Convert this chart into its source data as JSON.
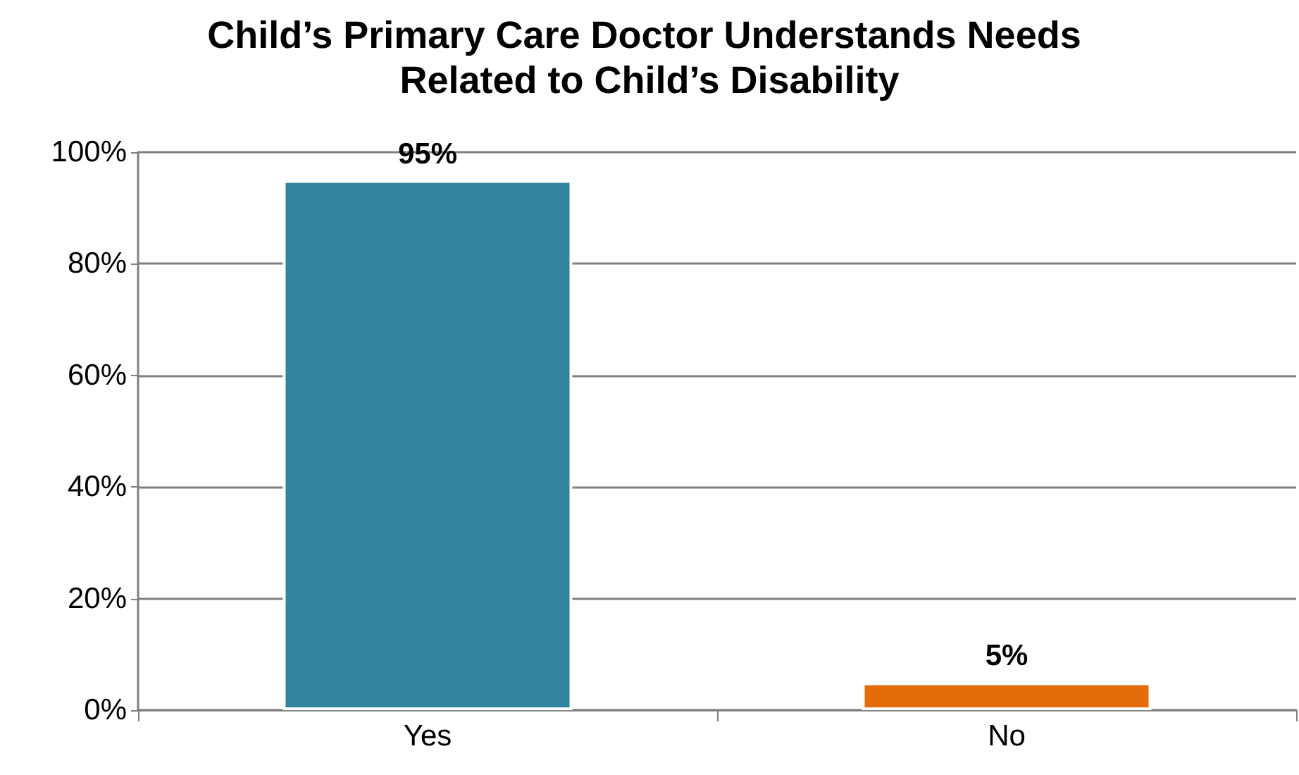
{
  "chart_data": {
    "type": "bar",
    "title": "Child’s Primary Care Doctor Understands Needs Related to Child’s Disability",
    "categories": [
      "Yes",
      "No"
    ],
    "values": [
      95,
      5
    ],
    "colors": [
      "#31849b",
      "#e46c0a"
    ],
    "value_labels": [
      "95%",
      "5%"
    ],
    "ylim": [
      0,
      100
    ],
    "yticks": [
      {
        "value": 0,
        "label": "0%"
      },
      {
        "value": 20,
        "label": "20%"
      },
      {
        "value": 40,
        "label": "40%"
      },
      {
        "value": 60,
        "label": "60%"
      },
      {
        "value": 80,
        "label": "80%"
      },
      {
        "value": 100,
        "label": "100%"
      }
    ],
    "grid": "y"
  }
}
